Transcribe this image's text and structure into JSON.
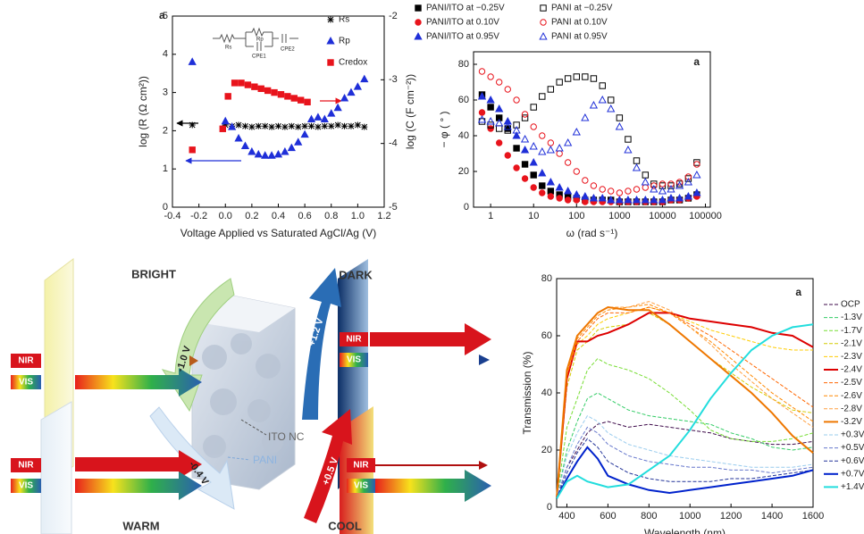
{
  "chart_data": [
    {
      "type": "scatter",
      "title": "a",
      "xlabel": "Voltage Applied vs Saturated AgCl/Ag (V)",
      "ylabel": "log (R (Ω cm²))",
      "y2label": "log (C (F cm⁻²))",
      "xlim": [
        -0.4,
        1.2
      ],
      "xticks": [
        -0.4,
        -0.2,
        {
          "value": 0,
          "label": "0.0"
        },
        0.2,
        0.4,
        0.6,
        0.8,
        {
          "value": 1,
          "label": "1.0"
        },
        1.2
      ],
      "ylim": [
        0,
        5
      ],
      "yticks": [
        0,
        1,
        2,
        3,
        4,
        5
      ],
      "y2lim": [
        -5,
        -2
      ],
      "y2ticks": [
        -5,
        -4,
        -3,
        -2
      ],
      "inset_labels": [
        "Rs",
        "Rp",
        "CPE1",
        "CPE2"
      ],
      "series": [
        {
          "name": "Rs",
          "color": "#000000",
          "marker": "star",
          "filled": true,
          "x": [
            -0.25,
            0,
            0.05,
            0.1,
            0.15,
            0.2,
            0.25,
            0.3,
            0.35,
            0.4,
            0.45,
            0.5,
            0.55,
            0.6,
            0.65,
            0.7,
            0.75,
            0.8,
            0.85,
            0.9,
            0.95,
            1.0,
            1.05
          ],
          "values": [
            2.15,
            2.15,
            2.12,
            2.15,
            2.12,
            2.1,
            2.12,
            2.12,
            2.1,
            2.12,
            2.1,
            2.12,
            2.1,
            2.12,
            2.12,
            2.1,
            2.12,
            2.12,
            2.15,
            2.12,
            2.12,
            2.15,
            2.1
          ]
        },
        {
          "name": "Rp",
          "color": "#1f2fd8",
          "marker": "triangle",
          "filled": true,
          "x": [
            -0.25,
            0,
            0.05,
            0.1,
            0.15,
            0.2,
            0.25,
            0.3,
            0.35,
            0.4,
            0.45,
            0.5,
            0.55,
            0.6,
            0.65,
            0.7,
            0.75,
            0.8,
            0.85,
            0.9,
            0.95,
            1.0,
            1.05
          ],
          "values": [
            3.8,
            2.25,
            2.1,
            1.8,
            1.6,
            1.45,
            1.38,
            1.35,
            1.35,
            1.38,
            1.45,
            1.55,
            1.7,
            1.9,
            2.3,
            2.35,
            2.3,
            2.45,
            2.6,
            2.85,
            3.0,
            3.15,
            3.35
          ]
        },
        {
          "name": "Credox",
          "color": "#e8141c",
          "marker": "square",
          "filled": true,
          "axis": "y2",
          "x": [
            -0.25,
            -0.02,
            0.02,
            0.07,
            0.12,
            0.17,
            0.22,
            0.27,
            0.32,
            0.37,
            0.42,
            0.47,
            0.52,
            0.57,
            0.62
          ],
          "values": [
            -4.1,
            -3.77,
            -3.26,
            -3.05,
            -3.05,
            -3.08,
            -3.11,
            -3.14,
            -3.17,
            -3.2,
            -3.23,
            -3.26,
            -3.29,
            -3.32,
            -3.35
          ]
        }
      ]
    },
    {
      "type": "scatter",
      "title": "a",
      "xscale": "log",
      "xlabel": "ω (rad s⁻¹)",
      "ylabel": "− φ ( ° )",
      "xlim": [
        0.4,
        130000
      ],
      "xticks": [
        1,
        10,
        100,
        1000,
        10000,
        100000
      ],
      "ylim": [
        0,
        87
      ],
      "yticks": [
        0,
        20,
        40,
        60,
        80
      ],
      "x": [
        0.63,
        1,
        1.58,
        2.5,
        4,
        6.3,
        10,
        15.8,
        25,
        40,
        63,
        100,
        158,
        250,
        400,
        630,
        1000,
        1580,
        2500,
        4000,
        6300,
        10000,
        15800,
        25000,
        40000,
        63000
      ],
      "series": [
        {
          "name": "PANI/ITO at −0.25V",
          "color": "#000000",
          "marker": "square",
          "filled": true,
          "values": [
            63,
            56,
            50,
            44,
            33,
            24,
            18,
            12,
            9,
            7,
            6,
            5,
            4,
            4,
            4,
            4,
            3,
            3,
            3,
            3,
            3,
            3,
            4,
            4,
            5,
            7
          ]
        },
        {
          "name": "PANI/ITO at 0.10V",
          "color": "#e8141c",
          "marker": "circle",
          "filled": true,
          "values": [
            53,
            44,
            36,
            29,
            22,
            16,
            11,
            8,
            6,
            5,
            4,
            4,
            3,
            3,
            3,
            3,
            3,
            3,
            3,
            3,
            3,
            3,
            4,
            4,
            5,
            6
          ]
        },
        {
          "name": "PANI/ITO at 0.95V",
          "color": "#1f2fd8",
          "marker": "triangle",
          "filled": true,
          "values": [
            62,
            60,
            55,
            48,
            40,
            32,
            25,
            19,
            14,
            11,
            9,
            7,
            6,
            5,
            5,
            4,
            4,
            4,
            4,
            4,
            4,
            4,
            5,
            5,
            6,
            8
          ]
        },
        {
          "name": "PANI at −0.25V",
          "color": "#000000",
          "marker": "square",
          "filled": false,
          "values": [
            48,
            46,
            44,
            43,
            46,
            50,
            56,
            62,
            66,
            70,
            72,
            73,
            73,
            72,
            68,
            60,
            50,
            38,
            26,
            18,
            13,
            12,
            12,
            13,
            16,
            25
          ]
        },
        {
          "name": "PANI at 0.10V",
          "color": "#e8141c",
          "marker": "circle",
          "filled": false,
          "values": [
            76,
            73,
            70,
            66,
            60,
            52,
            45,
            40,
            36,
            30,
            25,
            20,
            15,
            12,
            10,
            9,
            8,
            9,
            10,
            11,
            12,
            13,
            13,
            14,
            17,
            24
          ]
        },
        {
          "name": "PANI at 0.95V",
          "color": "#1f2fd8",
          "marker": "triangle",
          "filled": false,
          "values": [
            49,
            48,
            47,
            45,
            43,
            38,
            34,
            31,
            32,
            33,
            36,
            42,
            50,
            57,
            60,
            55,
            45,
            32,
            22,
            14,
            10,
            9,
            10,
            12,
            14,
            18
          ]
        }
      ]
    },
    {
      "type": "line",
      "title": "a",
      "xlabel": "Wavelength (nm)",
      "ylabel": "Transmission (%)",
      "xlim": [
        350,
        1600
      ],
      "xticks": [
        400,
        600,
        800,
        1000,
        1200,
        1400,
        1600
      ],
      "ylim": [
        0,
        80
      ],
      "yticks": [
        0,
        20,
        40,
        60,
        80
      ],
      "x": [
        350,
        400,
        450,
        500,
        550,
        600,
        700,
        800,
        900,
        1000,
        1100,
        1200,
        1300,
        1400,
        1500,
        1600
      ],
      "series": [
        {
          "name": "OCP",
          "color": "#3d0a4a",
          "dashed": true,
          "values": [
            3,
            14,
            20,
            26,
            29,
            30,
            28,
            29,
            28,
            27,
            26,
            24,
            23,
            22,
            22,
            23
          ]
        },
        {
          "name": "-1.3V",
          "color": "#33cc66",
          "dashed": true,
          "values": [
            3,
            20,
            30,
            38,
            40,
            38,
            34,
            32,
            31,
            30,
            29,
            26,
            24,
            21,
            20,
            21
          ]
        },
        {
          "name": "-1.7V",
          "color": "#77dd33",
          "dashed": true,
          "values": [
            3,
            28,
            38,
            48,
            52,
            50,
            48,
            45,
            40,
            34,
            27,
            24,
            23,
            23,
            24,
            26
          ]
        },
        {
          "name": "-2.1V",
          "color": "#d4cc00",
          "dashed": true,
          "values": [
            3,
            42,
            55,
            58,
            62,
            63,
            64,
            68,
            64,
            58,
            52,
            47,
            42,
            38,
            34,
            33
          ]
        },
        {
          "name": "-2.3V",
          "color": "#ffcc00",
          "dashed": true,
          "values": [
            3,
            45,
            57,
            60,
            64,
            66,
            68,
            70,
            68,
            65,
            62,
            60,
            58,
            56,
            55,
            55
          ]
        },
        {
          "name": "-2.4V",
          "color": "#dd0000",
          "dashed": false,
          "values": [
            3,
            45,
            58,
            58,
            60,
            61,
            64,
            68,
            68,
            66,
            65,
            64,
            63,
            61,
            60,
            56
          ]
        },
        {
          "name": "-2.5V",
          "color": "#ff6600",
          "dashed": true,
          "values": [
            3,
            46,
            58,
            62,
            66,
            68,
            68,
            70,
            68,
            64,
            60,
            55,
            50,
            45,
            40,
            35
          ]
        },
        {
          "name": "-2.6V",
          "color": "#ff8800",
          "dashed": true,
          "values": [
            3,
            47,
            59,
            63,
            67,
            69,
            70,
            71,
            68,
            63,
            58,
            52,
            46,
            40,
            35,
            30
          ]
        },
        {
          "name": "-2.8V",
          "color": "#ffa040",
          "dashed": true,
          "values": [
            3,
            48,
            60,
            64,
            68,
            70,
            70,
            72,
            69,
            63,
            57,
            50,
            44,
            38,
            33,
            28
          ]
        },
        {
          "name": "-3.2V",
          "color": "#ee7700",
          "dashed": false,
          "values": [
            3,
            48,
            60,
            64,
            68,
            70,
            69,
            69,
            64,
            58,
            52,
            46,
            40,
            33,
            25,
            19
          ]
        },
        {
          "name": "+0.3V",
          "color": "#99ccee",
          "dashed": true,
          "values": [
            3,
            18,
            26,
            32,
            30,
            26,
            22,
            20,
            18,
            17,
            16,
            15,
            14,
            14,
            14,
            15
          ]
        },
        {
          "name": "+0.5V",
          "color": "#6677cc",
          "dashed": true,
          "values": [
            3,
            14,
            22,
            28,
            26,
            22,
            18,
            16,
            15,
            14,
            14,
            13,
            13,
            12,
            13,
            14
          ]
        },
        {
          "name": "+0.6V",
          "color": "#223399",
          "dashed": true,
          "values": [
            3,
            12,
            19,
            24,
            21,
            16,
            12,
            10,
            9,
            9,
            9,
            10,
            10,
            11,
            12,
            13
          ]
        },
        {
          "name": "+0.7V",
          "color": "#0022cc",
          "dashed": false,
          "values": [
            3,
            10,
            16,
            21,
            17,
            11,
            8,
            6,
            5,
            6,
            7,
            8,
            9,
            10,
            11,
            13
          ]
        },
        {
          "name": "+1.4V",
          "color": "#22dddd",
          "dashed": false,
          "values": [
            3,
            9,
            11,
            9,
            8,
            7,
            8,
            13,
            18,
            27,
            38,
            47,
            55,
            60,
            63,
            64
          ]
        }
      ]
    }
  ],
  "diagram": {
    "states": [
      "BRIGHT",
      "DARK",
      "WARM",
      "COOL"
    ],
    "nir_labels": [
      "NIR",
      "NIR",
      "NIR",
      "NIR"
    ],
    "vis_labels": [
      "VIS",
      "VIS",
      "VIS",
      "VIS"
    ],
    "voltages": [
      "-1.0 V",
      "+1.2 V",
      "-0.4 V",
      "+0.5 V"
    ],
    "material_labels": [
      "ITO NC",
      "PANI"
    ]
  }
}
